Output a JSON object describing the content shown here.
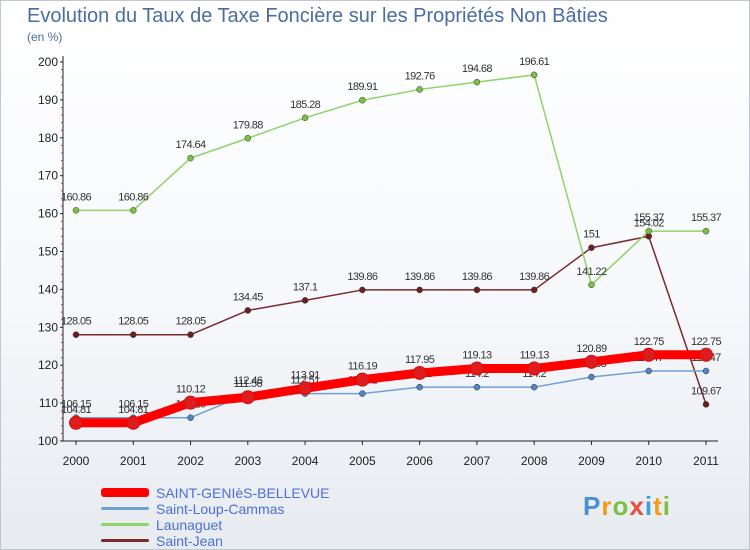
{
  "title": "Evolution du Taux de Taxe Foncière sur les Propriétés Non Bâties",
  "unit_label": "(en %)",
  "logo": {
    "text": "Proxiti",
    "letter_colors": [
      "#4a90d9",
      "#f39c12",
      "#7cc043",
      "#e74c3c",
      "#3aa0d8",
      "#f39c12",
      "#7cc043"
    ]
  },
  "colors": {
    "axis": "#222222",
    "grid": "#e6e6e6",
    "value_label": "#333333",
    "legend_text": "#4d6fd8",
    "title": "#4a6da3"
  },
  "chart_data": {
    "type": "line",
    "x": [
      2000,
      2001,
      2002,
      2003,
      2004,
      2005,
      2006,
      2007,
      2008,
      2009,
      2010,
      2011
    ],
    "ylim": [
      100,
      200
    ],
    "yticks": [
      100,
      110,
      120,
      130,
      140,
      150,
      160,
      170,
      180,
      190,
      200
    ],
    "grid": false,
    "legend_position": "bottom-left",
    "series": [
      {
        "name": "Saint-Jean",
        "color": "#7b2b2b",
        "marker": "#6b1f1f",
        "values": [
          128.05,
          128.05,
          128.05,
          134.45,
          137.1,
          139.86,
          139.86,
          139.86,
          139.86,
          151,
          154.02,
          109.67
        ],
        "labels": [
          "128.05",
          "128.05",
          "128.05",
          "134.45",
          "137.1",
          "139.86",
          "139.86",
          "139.86",
          "139.86",
          "151",
          "154.02",
          "109.67"
        ]
      },
      {
        "name": "Launaguet",
        "color": "#8fd36a",
        "marker": "#7cc043",
        "values": [
          160.86,
          160.86,
          174.64,
          179.88,
          185.28,
          189.91,
          192.76,
          194.68,
          196.61,
          141.22,
          155.37,
          155.37
        ],
        "labels": [
          "160.86",
          "160.86",
          "174.64",
          "179.88",
          "185.28",
          "189.91",
          "192.76",
          "194.68",
          "196.61",
          "141.22",
          "155.37",
          "155.37"
        ]
      },
      {
        "name": "Saint-Loup-Cammas",
        "color": "#6fa0d6",
        "marker": "#4f86c6",
        "values": [
          106.15,
          106.15,
          106.15,
          112.46,
          112.51,
          112.51,
          114.2,
          114.2,
          114.2,
          116.88,
          118.47,
          118.47
        ],
        "labels": [
          "106.15",
          "106.15",
          "106.15",
          "112.46",
          "112.51",
          "112.51",
          "114.2",
          "114.2",
          "114.2",
          "116.88",
          "118.47",
          "118.47"
        ]
      },
      {
        "name": "SAINT-GENIèS-BELLEVUE",
        "color": "#ff0000",
        "marker": "#e01b1b",
        "values": [
          104.81,
          104.81,
          110.12,
          111.56,
          113.91,
          116.19,
          117.95,
          119.13,
          119.13,
          120.89,
          122.75,
          122.75
        ],
        "labels": [
          "104.81",
          "104.81",
          "110.12",
          "111.56",
          "113.91",
          "116.19",
          "117.95",
          "119.13",
          "119.13",
          "120.89",
          "122.75",
          "122.75"
        ]
      }
    ]
  },
  "legend": [
    {
      "name": "SAINT-GENIèS-BELLEVUE",
      "color": "#ff0000"
    },
    {
      "name": "Saint-Loup-Cammas",
      "color": "#6fa0d6"
    },
    {
      "name": "Launaguet",
      "color": "#8fd36a"
    },
    {
      "name": "Saint-Jean",
      "color": "#7b2b2b"
    }
  ]
}
